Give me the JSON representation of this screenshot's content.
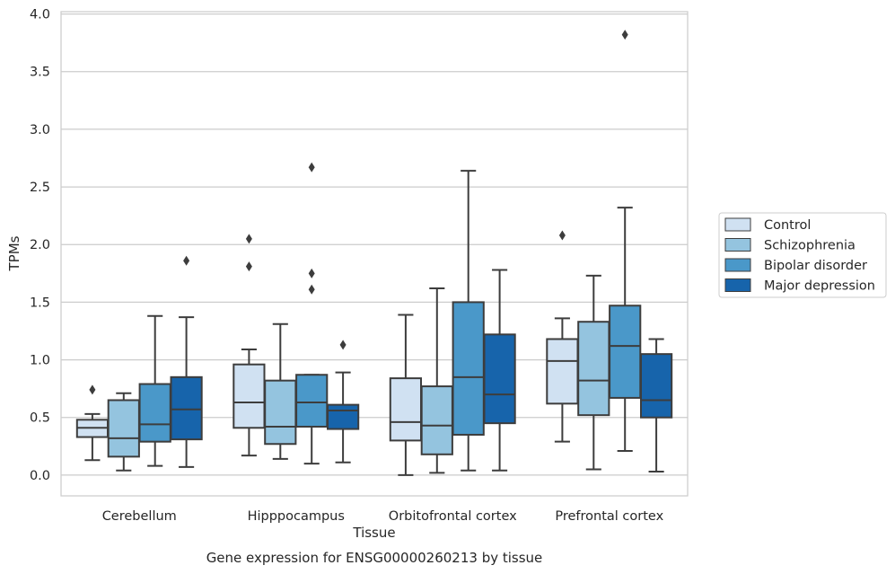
{
  "chart_data": {
    "type": "box",
    "caption": "Gene expression for ENSG00000260213 by tissue",
    "xlabel": "Tissue",
    "ylabel": "TPMs",
    "ylim": [
      -0.18,
      4.02
    ],
    "yticks": [
      "0.0",
      "0.5",
      "1.0",
      "1.5",
      "2.0",
      "2.5",
      "3.0",
      "3.5",
      "4.0"
    ],
    "grid": "horizontal",
    "legend_position": "right",
    "categories": [
      "Cerebellum",
      "Hipppocampus",
      "Orbitofrontal cortex",
      "Prefrontal cortex"
    ],
    "series": [
      {
        "name": "Control",
        "color": "#d0e1f2",
        "boxes": [
          {
            "whislo": 0.13,
            "q1": 0.33,
            "med": 0.41,
            "q3": 0.48,
            "whishi": 0.53,
            "fliers": [
              0.74
            ]
          },
          {
            "whislo": 0.17,
            "q1": 0.41,
            "med": 0.63,
            "q3": 0.96,
            "whishi": 1.09,
            "fliers": [
              1.81,
              2.05
            ]
          },
          {
            "whislo": 0.0,
            "q1": 0.3,
            "med": 0.46,
            "q3": 0.84,
            "whishi": 1.39,
            "fliers": []
          },
          {
            "whislo": 0.29,
            "q1": 0.62,
            "med": 0.99,
            "q3": 1.18,
            "whishi": 1.36,
            "fliers": [
              2.08
            ]
          }
        ]
      },
      {
        "name": "Schizophrenia",
        "color": "#94c4df",
        "boxes": [
          {
            "whislo": 0.04,
            "q1": 0.16,
            "med": 0.32,
            "q3": 0.65,
            "whishi": 0.71,
            "fliers": []
          },
          {
            "whislo": 0.14,
            "q1": 0.27,
            "med": 0.42,
            "q3": 0.82,
            "whishi": 1.31,
            "fliers": []
          },
          {
            "whislo": 0.02,
            "q1": 0.18,
            "med": 0.43,
            "q3": 0.77,
            "whishi": 1.62,
            "fliers": []
          },
          {
            "whislo": 0.05,
            "q1": 0.52,
            "med": 0.82,
            "q3": 1.33,
            "whishi": 1.73,
            "fliers": []
          }
        ]
      },
      {
        "name": "Bipolar disorder",
        "color": "#4a98c9",
        "boxes": [
          {
            "whislo": 0.08,
            "q1": 0.29,
            "med": 0.44,
            "q3": 0.79,
            "whishi": 1.38,
            "fliers": []
          },
          {
            "whislo": 0.1,
            "q1": 0.42,
            "med": 0.63,
            "q3": 0.87,
            "whishi": 0.87,
            "fliers": [
              1.61,
              1.75,
              2.67
            ]
          },
          {
            "whislo": 0.04,
            "q1": 0.35,
            "med": 0.85,
            "q3": 1.5,
            "whishi": 2.64,
            "fliers": []
          },
          {
            "whislo": 0.21,
            "q1": 0.67,
            "med": 1.12,
            "q3": 1.47,
            "whishi": 2.32,
            "fliers": [
              3.82
            ]
          }
        ]
      },
      {
        "name": "Major depression",
        "color": "#1764ab",
        "boxes": [
          {
            "whislo": 0.07,
            "q1": 0.31,
            "med": 0.57,
            "q3": 0.85,
            "whishi": 1.37,
            "fliers": [
              1.86
            ]
          },
          {
            "whislo": 0.11,
            "q1": 0.4,
            "med": 0.56,
            "q3": 0.61,
            "whishi": 0.89,
            "fliers": [
              1.13
            ]
          },
          {
            "whislo": 0.04,
            "q1": 0.45,
            "med": 0.7,
            "q3": 1.22,
            "whishi": 1.78,
            "fliers": []
          },
          {
            "whislo": 0.03,
            "q1": 0.5,
            "med": 0.65,
            "q3": 1.05,
            "whishi": 1.18,
            "fliers": []
          }
        ]
      }
    ]
  }
}
